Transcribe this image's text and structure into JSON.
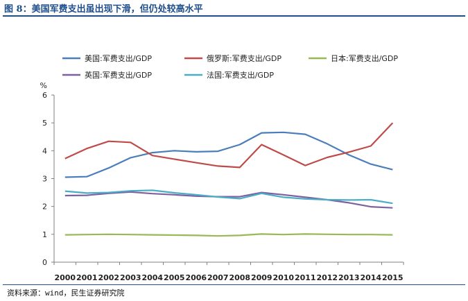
{
  "header": {
    "title": "图 8：美国军费支出虽出现下滑，但仍处较高水平"
  },
  "footer": {
    "source": "资料来源：wind，民生证券研究院"
  },
  "chart_data": {
    "type": "line",
    "title": "",
    "xlabel": "",
    "ylabel": "%",
    "ylim": [
      0,
      6
    ],
    "yticks": [
      0,
      1,
      2,
      3,
      4,
      5,
      6
    ],
    "grid": false,
    "legend_position": "top",
    "x": [
      "2000",
      "2001",
      "2002",
      "2003",
      "2004",
      "2005",
      "2006",
      "2007",
      "2008",
      "2009",
      "2010",
      "2011",
      "2012",
      "2013",
      "2014",
      "2015"
    ],
    "series": [
      {
        "name": "美国:军费支出/GDP",
        "color": "#4a7ebb",
        "values": [
          3.05,
          3.07,
          3.38,
          3.75,
          3.93,
          4.0,
          3.96,
          3.98,
          4.22,
          4.64,
          4.66,
          4.59,
          4.25,
          3.85,
          3.52,
          3.32
        ]
      },
      {
        "name": "俄罗斯:军费支出/GDP",
        "color": "#be4b48",
        "values": [
          3.72,
          4.08,
          4.34,
          4.3,
          3.83,
          3.7,
          3.57,
          3.45,
          3.4,
          4.22,
          3.85,
          3.47,
          3.76,
          3.95,
          4.17,
          5.0
        ]
      },
      {
        "name": "日本:军费支出/GDP",
        "color": "#98b954",
        "values": [
          0.98,
          0.99,
          1.0,
          0.99,
          0.98,
          0.97,
          0.96,
          0.94,
          0.96,
          1.01,
          0.99,
          1.01,
          1.0,
          0.99,
          0.99,
          0.98
        ]
      },
      {
        "name": "英国:军费支出/GDP",
        "color": "#7d60a0",
        "values": [
          2.39,
          2.4,
          2.47,
          2.52,
          2.46,
          2.42,
          2.37,
          2.35,
          2.35,
          2.5,
          2.42,
          2.33,
          2.24,
          2.13,
          1.99,
          1.95
        ]
      },
      {
        "name": "法国:军费支出/GDP",
        "color": "#4bacc6",
        "values": [
          2.55,
          2.48,
          2.5,
          2.56,
          2.58,
          2.49,
          2.42,
          2.34,
          2.28,
          2.47,
          2.33,
          2.27,
          2.24,
          2.23,
          2.24,
          2.11
        ]
      }
    ]
  }
}
